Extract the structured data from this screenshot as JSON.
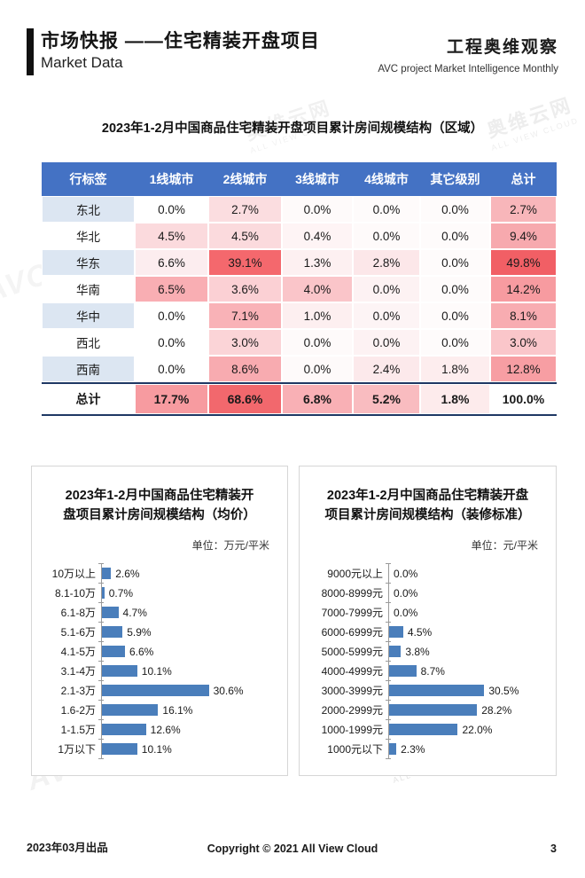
{
  "header": {
    "title_zh": "市场快报 ——住宅精装开盘项目",
    "title_en": "Market Data",
    "right_title": "工程奥维观察",
    "right_subtitle": "AVC  project Market Intelligence Monthly"
  },
  "table": {
    "title": "2023年1-2月中国商品住宅精装开盘项目累计房间规模结构（区域）",
    "header_bg": "#4472c4",
    "label_alt_bg": "#dce6f2",
    "columns": [
      "行标签",
      "1线城市",
      "2线城市",
      "3线城市",
      "4线城市",
      "其它级别",
      "总计"
    ],
    "rows": [
      {
        "label": "东北",
        "label_bg": "#dce6f2",
        "values": [
          {
            "t": "0.0%",
            "bg": "#ffffff"
          },
          {
            "t": "2.7%",
            "bg": "#fbdde0"
          },
          {
            "t": "0.0%",
            "bg": "#fefafa"
          },
          {
            "t": "0.0%",
            "bg": "#fefbfb"
          },
          {
            "t": "0.0%",
            "bg": "#fefbfb"
          },
          {
            "t": "2.7%",
            "bg": "#f8b6ba"
          }
        ]
      },
      {
        "label": "华北",
        "label_bg": "#ffffff",
        "values": [
          {
            "t": "4.5%",
            "bg": "#fbdadd"
          },
          {
            "t": "4.5%",
            "bg": "#fbdadd"
          },
          {
            "t": "0.4%",
            "bg": "#fef4f5"
          },
          {
            "t": "0.0%",
            "bg": "#fefafa"
          },
          {
            "t": "0.0%",
            "bg": "#fefbfb"
          },
          {
            "t": "9.4%",
            "bg": "#f7a9ae"
          }
        ]
      },
      {
        "label": "华东",
        "label_bg": "#dce6f2",
        "values": [
          {
            "t": "6.6%",
            "bg": "#fcedef"
          },
          {
            "t": "39.1%",
            "bg": "#f4686d"
          },
          {
            "t": "1.3%",
            "bg": "#fdf0f1"
          },
          {
            "t": "2.8%",
            "bg": "#fce7e9"
          },
          {
            "t": "0.0%",
            "bg": "#fefbfb"
          },
          {
            "t": "49.8%",
            "bg": "#f15f65"
          }
        ]
      },
      {
        "label": "华南",
        "label_bg": "#ffffff",
        "values": [
          {
            "t": "6.5%",
            "bg": "#f9aeb3"
          },
          {
            "t": "3.6%",
            "bg": "#fbd0d4"
          },
          {
            "t": "4.0%",
            "bg": "#fac5c9"
          },
          {
            "t": "0.0%",
            "bg": "#fdf2f3"
          },
          {
            "t": "0.0%",
            "bg": "#fefbfb"
          },
          {
            "t": "14.2%",
            "bg": "#f79ba0"
          }
        ]
      },
      {
        "label": "华中",
        "label_bg": "#dce6f2",
        "values": [
          {
            "t": "0.0%",
            "bg": "#ffffff"
          },
          {
            "t": "7.1%",
            "bg": "#f9b2b7"
          },
          {
            "t": "1.0%",
            "bg": "#fdeff0"
          },
          {
            "t": "0.0%",
            "bg": "#fdf4f5"
          },
          {
            "t": "0.0%",
            "bg": "#fefbfb"
          },
          {
            "t": "8.1%",
            "bg": "#f8acb1"
          }
        ]
      },
      {
        "label": "西北",
        "label_bg": "#ffffff",
        "values": [
          {
            "t": "0.0%",
            "bg": "#ffffff"
          },
          {
            "t": "3.0%",
            "bg": "#fbd4d7"
          },
          {
            "t": "0.0%",
            "bg": "#fefafa"
          },
          {
            "t": "0.0%",
            "bg": "#fdf2f3"
          },
          {
            "t": "0.0%",
            "bg": "#fefbfb"
          },
          {
            "t": "3.0%",
            "bg": "#fac6ca"
          }
        ]
      },
      {
        "label": "西南",
        "label_bg": "#dce6f2",
        "values": [
          {
            "t": "0.0%",
            "bg": "#ffffff"
          },
          {
            "t": "8.6%",
            "bg": "#f8abb0"
          },
          {
            "t": "0.0%",
            "bg": "#fefafa"
          },
          {
            "t": "2.4%",
            "bg": "#fce9eb"
          },
          {
            "t": "1.8%",
            "bg": "#fdedee"
          },
          {
            "t": "12.8%",
            "bg": "#f79ea3"
          }
        ]
      }
    ],
    "total_row": {
      "label": "总计",
      "label_bg": "#ffffff",
      "values": [
        {
          "t": "17.7%",
          "bg": "#f79ba0"
        },
        {
          "t": "68.6%",
          "bg": "#f2686d"
        },
        {
          "t": "6.8%",
          "bg": "#f9b0b5"
        },
        {
          "t": "5.2%",
          "bg": "#f9bcc0"
        },
        {
          "t": "1.8%",
          "bg": "#fdebec"
        },
        {
          "t": "100.0%",
          "bg": "#ffffff"
        }
      ]
    }
  },
  "chart_data": [
    {
      "type": "bar",
      "orientation": "horizontal",
      "title_lines": [
        "2023年1-2月中国商品住宅精装开",
        "盘项目累计房间规模结构（均价）"
      ],
      "unit": "单位：万元/平米",
      "categories": [
        "10万以上",
        "8.1-10万",
        "6.1-8万",
        "5.1-6万",
        "4.1-5万",
        "3.1-4万",
        "2.1-3万",
        "1.6-2万",
        "1-1.5万",
        "1万以下"
      ],
      "values": [
        2.6,
        0.7,
        4.7,
        5.9,
        6.6,
        10.1,
        30.6,
        16.1,
        12.6,
        10.1
      ],
      "labels": [
        "2.6%",
        "0.7%",
        "4.7%",
        "5.9%",
        "6.6%",
        "10.1%",
        "30.6%",
        "16.1%",
        "12.6%",
        "10.1%"
      ],
      "bar_color": "#4a7ebb",
      "xlim": [
        0,
        50
      ],
      "grid": false,
      "legend": false
    },
    {
      "type": "bar",
      "orientation": "horizontal",
      "title_lines": [
        "2023年1-2月中国商品住宅精装开盘",
        "项目累计房间规模结构（装修标准）"
      ],
      "unit": "单位：元/平米",
      "categories": [
        "9000元以上",
        "8000-8999元",
        "7000-7999元",
        "6000-6999元",
        "5000-5999元",
        "4000-4999元",
        "3000-3999元",
        "2000-2999元",
        "1000-1999元",
        "1000元以下"
      ],
      "values": [
        0.0,
        0.0,
        0.0,
        4.5,
        3.8,
        8.7,
        30.5,
        28.2,
        22.0,
        2.3
      ],
      "labels": [
        "0.0%",
        "0.0%",
        "0.0%",
        "4.5%",
        "3.8%",
        "8.7%",
        "30.5%",
        "28.2%",
        "22.0%",
        "2.3%"
      ],
      "bar_color": "#4a7ebb",
      "xlim": [
        0,
        50
      ],
      "grid": false,
      "legend": false
    }
  ],
  "footer": {
    "left": "2023年03月出品",
    "center": "Copyright © 2021  All View Cloud",
    "page": "3"
  },
  "watermark": {
    "brand": "AVC",
    "name": "奥维云网",
    "tagline": "ALL VIEW CLOUD"
  }
}
